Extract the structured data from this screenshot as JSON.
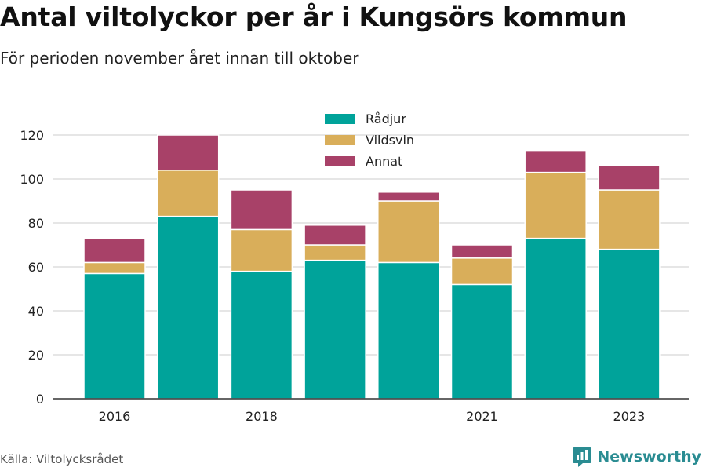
{
  "title": "Antal viltolyckor per år i Kungsörs kommun",
  "subtitle": "För perioden november året innan till oktober",
  "source": "Källa: Viltolycksrådet",
  "brand": {
    "name": "Newsworthy",
    "icon": "newsworthy-logo-icon"
  },
  "colors": {
    "Rådjur": "#00a39a",
    "Vildsvin": "#d9ae5a",
    "Annat": "#a84168",
    "grid": "#dddddd",
    "axis": "#333333"
  },
  "chart_data": {
    "type": "bar",
    "stacked": true,
    "categories": [
      "2016",
      "2017",
      "2018",
      "2019",
      "2020",
      "2021",
      "2022",
      "2023"
    ],
    "x_tick_labels": [
      "2016",
      "",
      "2018",
      "",
      "",
      "2021",
      "",
      "2023"
    ],
    "series": [
      {
        "name": "Rådjur",
        "values": [
          57,
          83,
          58,
          63,
          62,
          52,
          73,
          68
        ]
      },
      {
        "name": "Vildsvin",
        "values": [
          5,
          21,
          19,
          7,
          28,
          12,
          30,
          27
        ]
      },
      {
        "name": "Annat",
        "values": [
          11,
          16,
          18,
          9,
          4,
          6,
          10,
          11
        ]
      }
    ],
    "ylim": [
      0,
      120
    ],
    "y_ticks": [
      0,
      20,
      40,
      60,
      80,
      100,
      120
    ],
    "grid": true,
    "legend_position": "top-center",
    "xlabel": "",
    "ylabel": ""
  }
}
